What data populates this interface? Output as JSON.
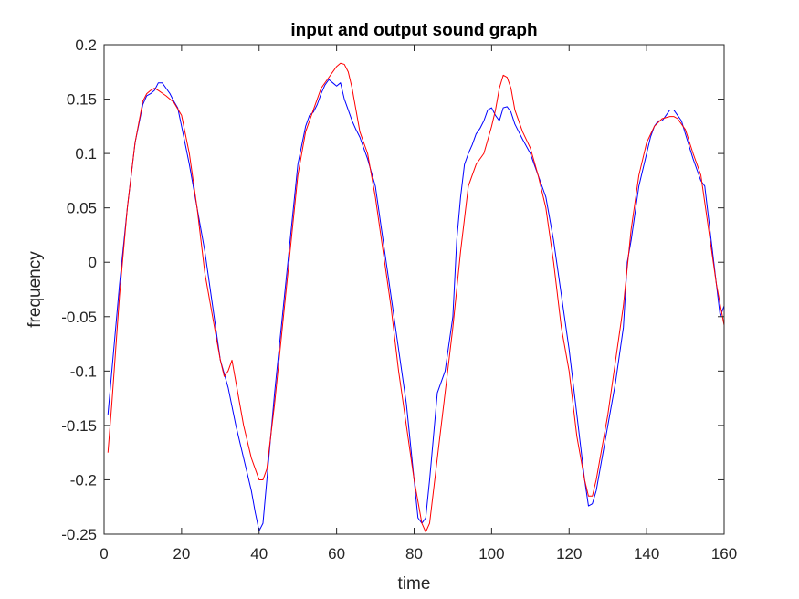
{
  "chart_data": {
    "type": "line",
    "title": "input and output sound graph",
    "xlabel": "time",
    "ylabel": "frequency",
    "xlim": [
      0,
      160
    ],
    "ylim": [
      -0.25,
      0.2
    ],
    "grid": false,
    "legend": "none",
    "x_ticks": [
      0,
      20,
      40,
      60,
      80,
      100,
      120,
      140,
      160
    ],
    "y_ticks": [
      -0.25,
      -0.2,
      -0.15,
      -0.1,
      -0.05,
      0,
      0.05,
      0.1,
      0.15,
      0.2
    ],
    "x_tick_labels": [
      "0",
      "20",
      "40",
      "60",
      "80",
      "100",
      "120",
      "140",
      "160"
    ],
    "y_tick_labels": [
      "-0.25",
      "-0.2",
      "-0.15",
      "-0.1",
      "-0.05",
      "0",
      "0.05",
      "0.1",
      "0.15",
      "0.2"
    ],
    "series": [
      {
        "color": "#0000ff",
        "x": [
          1,
          2,
          3,
          4,
          6,
          8,
          10,
          11,
          12,
          13,
          14,
          15,
          16,
          17,
          18,
          19,
          20,
          22,
          24,
          26,
          28,
          30,
          32,
          34,
          36,
          38,
          39,
          40,
          41,
          42,
          44,
          46,
          48,
          50,
          52,
          53,
          54,
          55,
          56,
          57,
          58,
          59,
          60,
          61,
          62,
          63,
          64,
          65,
          66,
          68,
          70,
          72,
          74,
          76,
          78,
          80,
          81,
          82,
          83,
          84,
          86,
          88,
          90,
          91,
          92,
          93,
          94,
          95,
          96,
          97,
          98,
          99,
          100,
          101,
          102,
          103,
          104,
          105,
          106,
          107,
          108,
          110,
          112,
          114,
          116,
          118,
          120,
          122,
          124,
          125,
          126,
          127,
          128,
          130,
          132,
          134,
          135,
          136,
          137,
          138,
          139,
          140,
          141,
          142,
          143,
          144,
          145,
          146,
          147,
          148,
          149,
          150,
          152,
          154,
          155,
          156,
          157,
          158,
          159,
          160
        ],
        "y": [
          -0.14,
          -0.1,
          -0.06,
          -0.02,
          0.05,
          0.11,
          0.145,
          0.153,
          0.155,
          0.158,
          0.165,
          0.165,
          0.16,
          0.155,
          0.148,
          0.142,
          0.125,
          0.09,
          0.05,
          0.01,
          -0.04,
          -0.09,
          -0.115,
          -0.15,
          -0.18,
          -0.21,
          -0.23,
          -0.247,
          -0.24,
          -0.2,
          -0.12,
          -0.05,
          0.02,
          0.09,
          0.125,
          0.135,
          0.138,
          0.145,
          0.155,
          0.163,
          0.168,
          0.165,
          0.162,
          0.165,
          0.15,
          0.14,
          0.13,
          0.122,
          0.115,
          0.095,
          0.07,
          0.02,
          -0.03,
          -0.08,
          -0.13,
          -0.2,
          -0.235,
          -0.24,
          -0.235,
          -0.2,
          -0.12,
          -0.1,
          -0.05,
          0.02,
          0.06,
          0.09,
          0.1,
          0.108,
          0.118,
          0.123,
          0.13,
          0.14,
          0.142,
          0.135,
          0.13,
          0.142,
          0.143,
          0.138,
          0.127,
          0.12,
          0.113,
          0.1,
          0.08,
          0.06,
          0.02,
          -0.03,
          -0.08,
          -0.14,
          -0.2,
          -0.224,
          -0.222,
          -0.21,
          -0.19,
          -0.15,
          -0.11,
          -0.06,
          0.0,
          0.02,
          0.045,
          0.07,
          0.085,
          0.1,
          0.115,
          0.125,
          0.13,
          0.13,
          0.135,
          0.14,
          0.14,
          0.135,
          0.13,
          0.118,
          0.095,
          0.075,
          0.07,
          0.04,
          0.01,
          -0.02,
          -0.05,
          -0.04
        ]
      },
      {
        "color": "#ff0000",
        "x": [
          1,
          2,
          3,
          4,
          6,
          8,
          10,
          11,
          12,
          13,
          14,
          16,
          18,
          20,
          22,
          24,
          26,
          28,
          30,
          31,
          32,
          33,
          34,
          36,
          38,
          40,
          41,
          42,
          44,
          46,
          48,
          50,
          52,
          54,
          56,
          58,
          60,
          61,
          62,
          63,
          64,
          65,
          66,
          68,
          70,
          72,
          74,
          76,
          78,
          80,
          82,
          83,
          84,
          86,
          88,
          90,
          92,
          94,
          96,
          98,
          100,
          101,
          102,
          103,
          104,
          105,
          106,
          107,
          108,
          110,
          112,
          114,
          116,
          118,
          120,
          122,
          124,
          125,
          126,
          127,
          128,
          130,
          132,
          134,
          136,
          138,
          140,
          142,
          144,
          146,
          147,
          148,
          150,
          152,
          154,
          156,
          158,
          160
        ],
        "y": [
          -0.175,
          -0.13,
          -0.08,
          -0.03,
          0.05,
          0.11,
          0.148,
          0.155,
          0.158,
          0.16,
          0.158,
          0.153,
          0.147,
          0.135,
          0.1,
          0.05,
          -0.01,
          -0.05,
          -0.09,
          -0.105,
          -0.1,
          -0.09,
          -0.11,
          -0.15,
          -0.18,
          -0.2,
          -0.2,
          -0.19,
          -0.13,
          -0.06,
          0.01,
          0.08,
          0.12,
          0.14,
          0.16,
          0.17,
          0.18,
          0.183,
          0.182,
          0.175,
          0.16,
          0.14,
          0.12,
          0.1,
          0.06,
          0.01,
          -0.04,
          -0.1,
          -0.15,
          -0.2,
          -0.24,
          -0.248,
          -0.24,
          -0.18,
          -0.12,
          -0.06,
          0.01,
          0.07,
          0.09,
          0.1,
          0.125,
          0.14,
          0.16,
          0.172,
          0.17,
          0.16,
          0.14,
          0.13,
          0.12,
          0.105,
          0.08,
          0.05,
          0.0,
          -0.06,
          -0.1,
          -0.16,
          -0.2,
          -0.215,
          -0.215,
          -0.2,
          -0.18,
          -0.14,
          -0.09,
          -0.04,
          0.03,
          0.08,
          0.11,
          0.125,
          0.132,
          0.134,
          0.134,
          0.132,
          0.122,
          0.1,
          0.08,
          0.03,
          -0.02,
          -0.058
        ]
      }
    ]
  }
}
